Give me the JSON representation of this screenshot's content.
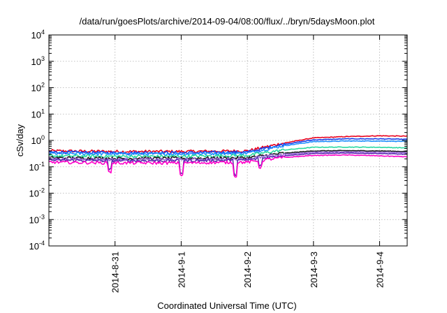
{
  "chart_data": {
    "type": "line",
    "title": "/data/run/goesPlots/archive/2014-09-04/08:00/flux/../bryn/5daysMoon.plot",
    "xlabel": "Coordinated Universal Time (UTC)",
    "ylabel": "cSv/day",
    "y_scale": "log",
    "ylim": [
      0.0001,
      10000
    ],
    "xlim": [
      "2014-08-30T00:00",
      "2014-09-04T10:00"
    ],
    "grid": true,
    "legend": "none",
    "y_ticks": [
      {
        "value": 0.0001,
        "base": "10",
        "exp": "-4"
      },
      {
        "value": 0.001,
        "base": "10",
        "exp": "-3"
      },
      {
        "value": 0.01,
        "base": "10",
        "exp": "-2"
      },
      {
        "value": 0.1,
        "base": "10",
        "exp": "-1"
      },
      {
        "value": 1,
        "base": "10",
        "exp": "0"
      },
      {
        "value": 10,
        "base": "10",
        "exp": "1"
      },
      {
        "value": 100,
        "base": "10",
        "exp": "2"
      },
      {
        "value": 1000,
        "base": "10",
        "exp": "3"
      },
      {
        "value": 10000,
        "base": "10",
        "exp": "4"
      }
    ],
    "x_ticks": [
      {
        "value": "2014-08-31T00:00",
        "label": "2014-8-31"
      },
      {
        "value": "2014-09-01T00:00",
        "label": "2014-9-1"
      },
      {
        "value": "2014-09-02T00:00",
        "label": "2014-9-2"
      },
      {
        "value": "2014-09-03T00:00",
        "label": "2014-9-3"
      },
      {
        "value": "2014-09-04T00:00",
        "label": "2014-9-4"
      }
    ],
    "series": [
      {
        "color": "#e8001c",
        "x": [
          "2014-08-30T00:00",
          "2014-08-31T00:00",
          "2014-09-01T00:00",
          "2014-09-02T00:00",
          "2014-09-02T12:00",
          "2014-09-03T00:00",
          "2014-09-03T12:00",
          "2014-09-04T00:00",
          "2014-09-04T10:00"
        ],
        "values": [
          0.4,
          0.38,
          0.38,
          0.4,
          0.75,
          1.25,
          1.4,
          1.5,
          1.45
        ]
      },
      {
        "color": "#1a3fe8",
        "x": [
          "2014-08-30T00:00",
          "2014-08-31T00:00",
          "2014-09-01T00:00",
          "2014-09-02T00:00",
          "2014-09-02T12:00",
          "2014-09-03T00:00",
          "2014-09-03T12:00",
          "2014-09-04T00:00",
          "2014-09-04T10:00"
        ],
        "values": [
          0.36,
          0.34,
          0.34,
          0.36,
          0.68,
          1.05,
          1.15,
          1.15,
          1.1
        ]
      },
      {
        "color": "#1e90ff",
        "x": [
          "2014-08-30T00:00",
          "2014-08-31T00:00",
          "2014-09-01T00:00",
          "2014-09-02T00:00",
          "2014-09-02T12:00",
          "2014-09-03T00:00",
          "2014-09-03T12:00",
          "2014-09-04T00:00",
          "2014-09-04T10:00"
        ],
        "values": [
          0.32,
          0.31,
          0.31,
          0.33,
          0.6,
          0.9,
          0.95,
          0.95,
          0.92
        ]
      },
      {
        "color": "#2ad9a0",
        "x": [
          "2014-08-30T00:00",
          "2014-08-31T00:00",
          "2014-09-01T00:00",
          "2014-09-02T00:00",
          "2014-09-02T12:00",
          "2014-09-03T00:00",
          "2014-09-03T12:00",
          "2014-09-04T00:00",
          "2014-09-04T10:00"
        ],
        "values": [
          0.26,
          0.25,
          0.25,
          0.27,
          0.42,
          0.55,
          0.56,
          0.55,
          0.52
        ]
      },
      {
        "color": "#1a1a1a",
        "x": [
          "2014-08-30T00:00",
          "2014-08-31T00:00",
          "2014-09-01T00:00",
          "2014-09-02T00:00",
          "2014-09-02T12:00",
          "2014-09-03T00:00",
          "2014-09-03T12:00",
          "2014-09-04T00:00",
          "2014-09-04T10:00"
        ],
        "values": [
          0.22,
          0.21,
          0.21,
          0.22,
          0.32,
          0.4,
          0.41,
          0.4,
          0.38
        ]
      },
      {
        "color": "#9b6bd9",
        "x": [
          "2014-08-30T00:00",
          "2014-08-31T00:00",
          "2014-09-01T00:00",
          "2014-09-02T00:00",
          "2014-09-02T12:00",
          "2014-09-03T00:00",
          "2014-09-03T12:00",
          "2014-09-04T00:00",
          "2014-09-04T10:00"
        ],
        "values": [
          0.2,
          0.19,
          0.19,
          0.2,
          0.29,
          0.36,
          0.37,
          0.36,
          0.34
        ]
      },
      {
        "color": "#5a2ab0",
        "x": [
          "2014-08-30T00:00",
          "2014-08-31T00:00",
          "2014-09-01T00:00",
          "2014-09-02T00:00",
          "2014-09-02T12:00",
          "2014-09-03T00:00",
          "2014-09-03T12:00",
          "2014-09-04T00:00",
          "2014-09-04T10:00"
        ],
        "values": [
          0.18,
          0.17,
          0.17,
          0.18,
          0.26,
          0.32,
          0.33,
          0.32,
          0.3
        ]
      },
      {
        "color": "#ff00c8",
        "x": [
          "2014-08-30T00:00",
          "2014-08-31T00:00",
          "2014-09-01T00:00",
          "2014-09-02T00:00",
          "2014-09-02T12:00",
          "2014-09-03T00:00",
          "2014-09-03T12:00",
          "2014-09-04T00:00",
          "2014-09-04T10:00"
        ],
        "values": [
          0.15,
          0.14,
          0.14,
          0.15,
          0.22,
          0.27,
          0.28,
          0.26,
          0.24
        ]
      }
    ]
  }
}
